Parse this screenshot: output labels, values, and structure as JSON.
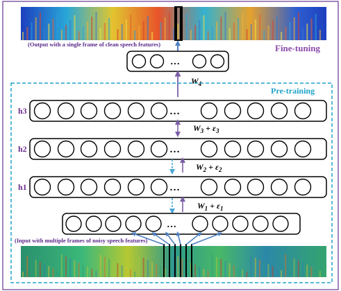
{
  "title": "Fine-tuning",
  "pretrain_label": "Pre-training",
  "output_caption": "(Output with a single frame of clean speech features)",
  "input_caption": "(Input with multiple frames of noisy speech features)",
  "ellipsis": "…",
  "colors": {
    "frame": "#7a4fa0",
    "pretrain_box": "#1fa3c9",
    "arrow": "#7b5ea7",
    "dashed_arrow": "#49a6d6",
    "input_arrow": "#4f80c0",
    "layer_label": "#6a2c8e",
    "caption": "#5b2a8a"
  },
  "layers": [
    {
      "id": "h3",
      "label": "h3"
    },
    {
      "id": "h2",
      "label": "h2"
    },
    {
      "id": "h1",
      "label": "h1"
    }
  ],
  "weights": {
    "w4": {
      "base": "W",
      "sub": "4",
      "noise": ""
    },
    "w3": {
      "base": "W",
      "sub": "3",
      "noise": "ε",
      "noise_sub": "3"
    },
    "w2": {
      "base": "W",
      "sub": "2",
      "noise": "ε",
      "noise_sub": "2"
    },
    "w1": {
      "base": "W",
      "sub": "1",
      "noise": "ε",
      "noise_sub": "1"
    }
  }
}
